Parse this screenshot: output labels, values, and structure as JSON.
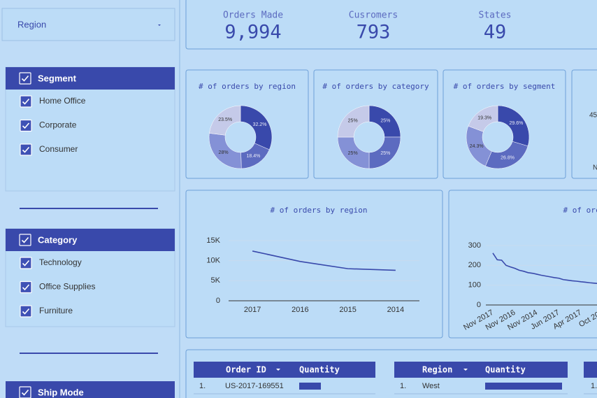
{
  "filters": {
    "region": "Region",
    "segment": {
      "title": "Segment",
      "items": [
        "Home Office",
        "Corporate",
        "Consumer"
      ]
    },
    "category": {
      "title": "Category",
      "items": [
        "Technology",
        "Office Supplies",
        "Furniture"
      ]
    },
    "ship_mode": "Ship Mode"
  },
  "kpis": [
    {
      "label": "Orders Made",
      "value": "9,994"
    },
    {
      "label": "Cusromers",
      "value": "793"
    },
    {
      "label": "States",
      "value": "49"
    }
  ],
  "chart_data": [
    {
      "type": "pie",
      "title": "# of orders by region",
      "values": [
        32.2,
        18.4,
        28,
        23.5
      ],
      "value_labels": [
        "32.2%",
        "18.4%",
        "28%",
        "23.5%"
      ],
      "colors": [
        "#3949ab",
        "#5c6bc0",
        "#8491d6",
        "#c5cae9"
      ]
    },
    {
      "type": "pie",
      "title": "# of orders by category",
      "values": [
        25,
        25,
        25,
        25
      ],
      "value_labels": [
        "25%",
        "25%",
        "25%",
        "25%"
      ],
      "colors": [
        "#3949ab",
        "#5c6bc0",
        "#8491d6",
        "#c5cae9"
      ]
    },
    {
      "type": "pie",
      "title": "# of orders by segment",
      "values": [
        29.6,
        26.8,
        24.3,
        19.3
      ],
      "value_labels": [
        "29.6%",
        "26.8%",
        "24.3%",
        "19.3%"
      ],
      "colors": [
        "#3949ab",
        "#5c6bc0",
        "#8491d6",
        "#c5cae9"
      ]
    },
    {
      "type": "line",
      "title": "# of orders by region",
      "categories": [
        "2017",
        "2016",
        "2015",
        "2014"
      ],
      "values": [
        12400,
        9800,
        8000,
        7600
      ],
      "color": "#3949ab",
      "ylim": [
        0,
        15000
      ],
      "yticks": [
        0,
        {
          "value": 5000,
          "label": "5K"
        },
        {
          "value": 10000,
          "label": "10K"
        },
        {
          "value": 15000,
          "label": "15K"
        }
      ],
      "grid": true
    },
    {
      "type": "line",
      "title": "# of orc",
      "categories": [
        "Nov 2017",
        null,
        null,
        null,
        null,
        "Nov 2016",
        null,
        null,
        null,
        null,
        "Nov 2014",
        null,
        null,
        null,
        null,
        "Jun 2017",
        null,
        null,
        null,
        null,
        "Apr 2017",
        null,
        null,
        null,
        null,
        "Oct 201"
      ],
      "values": [
        262,
        228,
        226,
        200,
        192,
        185,
        175,
        170,
        163,
        160,
        155,
        150,
        146,
        142,
        138,
        135,
        128,
        125,
        122,
        120,
        117,
        115,
        112,
        110,
        108,
        106
      ],
      "color": "#3949ab",
      "ylim": [
        0,
        300
      ],
      "yticks": [
        0,
        100,
        200,
        300
      ],
      "grid": true
    }
  ],
  "partial_card": [
    "45",
    "N"
  ],
  "tables": [
    {
      "headers": [
        "Order ID",
        "Quantity"
      ],
      "rows": [
        [
          "1.",
          "US-2017-169551"
        ]
      ]
    },
    {
      "headers": [
        "Region",
        "Quantity"
      ],
      "rows": [
        [
          "1.",
          "West"
        ]
      ]
    },
    {
      "rows": [
        [
          "1."
        ]
      ]
    }
  ]
}
